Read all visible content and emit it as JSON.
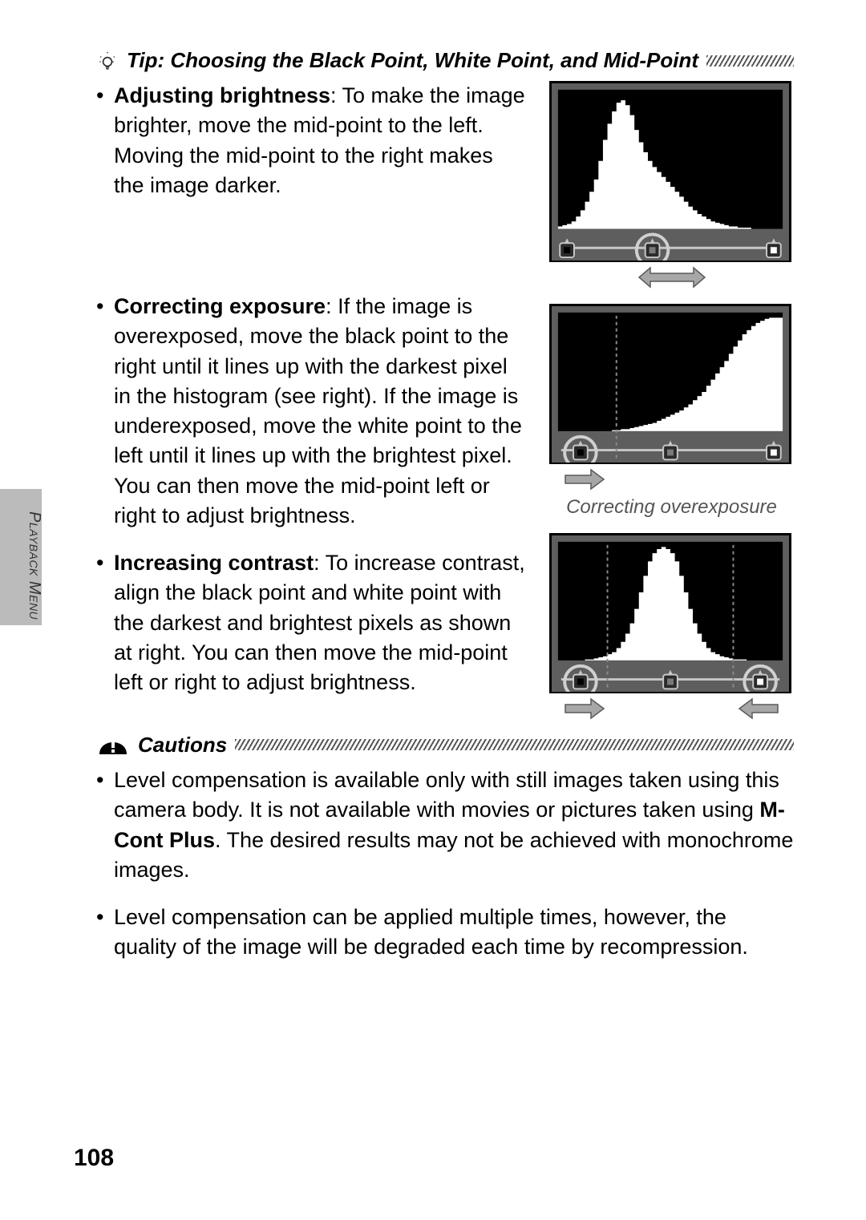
{
  "tip": {
    "title": "Tip: Choosing the Black Point, White Point, and Mid-Point"
  },
  "bullets": {
    "brightness": {
      "head": "Adjusting brightness",
      "text": ": To make the image brighter, move the mid-point to the left. Moving the mid-point to the right makes the image darker."
    },
    "exposure": {
      "head": "Correcting exposure",
      "text": ": If the image is overexposed, move the black point to the right until it lines up with the darkest pixel in the histogram (see right). If the image is underexposed, move the white point to the left until it lines up with the brightest pixel. You can then move the mid-point left or right to adjust brightness."
    },
    "contrast": {
      "head": "Increasing contrast",
      "text": ": To increase contrast, align the black point and white point with the darkest and brightest pixels as shown at right. You can then move the mid-point left or right to adjust brightness."
    }
  },
  "figure2_caption": "Correcting overexposure",
  "cautions": {
    "title": "Cautions",
    "items": {
      "a_pre": "Level compensation is available only with still images taken using this camera body. It is not available with movies or pictures taken using ",
      "a_bold": "M-Cont Plus",
      "a_post": ". The desired results may not be achieved with monochrome images.",
      "b": "Level compensation can be applied multiple times, however, the quality of the image will be degraded each time by recompression."
    }
  },
  "side_label": "Playback Menu",
  "page_number": "108",
  "colors": {
    "histogram_bg": "#5e5e5e",
    "histogram_fill": "#ffffff",
    "histogram_border": "#000000",
    "arrow_fill": "#a7a7a7",
    "arrow_stroke": "#5a5a5a",
    "dashed": "#8a8a8a"
  },
  "hist1": {
    "type": "histogram",
    "values": [
      2,
      3,
      4,
      6,
      10,
      15,
      22,
      30,
      40,
      55,
      72,
      85,
      95,
      102,
      104,
      100,
      92,
      80,
      70,
      62,
      55,
      50,
      46,
      42,
      38,
      34,
      30,
      26,
      22,
      18,
      15,
      12,
      10,
      8,
      6,
      5,
      4,
      3,
      2,
      2,
      1,
      1,
      1,
      0,
      0,
      0,
      0,
      0,
      0,
      0
    ],
    "max": 110,
    "sliders": {
      "black": 0.04,
      "mid": 0.42,
      "white": 0.96
    },
    "circle": "mid",
    "arrow": {
      "at": 0.42,
      "dir": "both"
    }
  },
  "hist2": {
    "type": "histogram",
    "values": [
      0,
      0,
      0,
      0,
      0,
      0,
      0,
      0,
      0,
      0,
      0,
      0,
      1,
      1,
      2,
      2,
      3,
      4,
      5,
      6,
      7,
      8,
      10,
      12,
      14,
      16,
      18,
      20,
      23,
      26,
      30,
      34,
      38,
      44,
      50,
      56,
      62,
      68,
      75,
      82,
      88,
      94,
      98,
      102,
      105,
      107,
      109,
      110,
      110,
      110
    ],
    "max": 112,
    "sliders": {
      "black": 0.1,
      "mid": 0.5,
      "white": 0.96
    },
    "circle": "black",
    "dashed_at": [
      0.26
    ],
    "arrow": {
      "at": 0.12,
      "dir": "right"
    }
  },
  "hist3": {
    "type": "histogram",
    "values": [
      0,
      0,
      0,
      0,
      0,
      0,
      1,
      1,
      2,
      3,
      4,
      6,
      8,
      12,
      18,
      26,
      36,
      50,
      66,
      82,
      96,
      104,
      108,
      110,
      108,
      104,
      96,
      82,
      66,
      50,
      36,
      26,
      18,
      12,
      8,
      6,
      4,
      3,
      2,
      1,
      1,
      1,
      0,
      0,
      0,
      0,
      0,
      0,
      0,
      0
    ],
    "max": 112,
    "sliders": {
      "black": 0.1,
      "mid": 0.5,
      "white": 0.9
    },
    "circle": "both",
    "dashed_at": [
      0.22,
      0.78
    ],
    "arrows2": {
      "left": {
        "at": 0.12,
        "dir": "right"
      },
      "right": {
        "at": 0.88,
        "dir": "left"
      }
    }
  }
}
